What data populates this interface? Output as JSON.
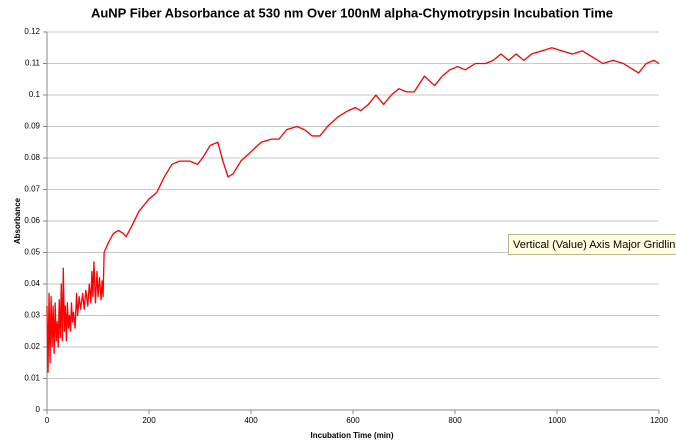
{
  "chart_data": {
    "type": "line",
    "title": "AuNP Fiber Absorbance at 530 nm Over 100nM alpha-Chymotrypsin Incubation Time",
    "x_label": "Incubation Time (min)",
    "y_label": "Absorbance",
    "xlim": [
      0,
      1200
    ],
    "xticks": [
      0,
      200,
      400,
      600,
      800,
      1000,
      1200
    ],
    "ylim": [
      0,
      0.12
    ],
    "yticks": [
      0,
      0.01,
      0.02,
      0.03,
      0.04,
      0.05,
      0.06,
      0.07,
      0.08,
      0.09,
      0.1,
      0.11,
      0.12
    ],
    "grid": true,
    "series": [
      {
        "color": "#ff0000",
        "x": [
          0,
          2,
          4,
          6,
          8,
          10,
          12,
          14,
          16,
          18,
          20,
          22,
          24,
          26,
          28,
          30,
          32,
          34,
          36,
          38,
          40,
          42,
          44,
          46,
          48,
          50,
          52,
          55,
          58,
          60,
          63,
          66,
          70,
          73,
          76,
          80,
          83,
          86,
          88,
          90,
          92,
          95,
          98,
          100,
          103,
          106,
          108,
          110,
          112,
          120,
          130,
          140,
          150,
          155,
          165,
          180,
          200,
          215,
          230,
          245,
          260,
          280,
          295,
          305,
          320,
          335,
          345,
          355,
          365,
          380,
          400,
          420,
          440,
          455,
          470,
          490,
          505,
          520,
          535,
          550,
          570,
          590,
          605,
          615,
          630,
          645,
          660,
          675,
          690,
          705,
          720,
          740,
          760,
          775,
          790,
          805,
          820,
          840,
          860,
          875,
          890,
          905,
          920,
          935,
          950,
          970,
          990,
          1010,
          1030,
          1050,
          1070,
          1090,
          1110,
          1130,
          1150,
          1160,
          1175,
          1190,
          1200
        ],
        "values": [
          0.033,
          0.012,
          0.037,
          0.015,
          0.036,
          0.02,
          0.033,
          0.018,
          0.034,
          0.022,
          0.028,
          0.02,
          0.035,
          0.023,
          0.04,
          0.022,
          0.045,
          0.025,
          0.033,
          0.022,
          0.034,
          0.026,
          0.03,
          0.025,
          0.034,
          0.028,
          0.031,
          0.026,
          0.037,
          0.03,
          0.036,
          0.032,
          0.037,
          0.032,
          0.038,
          0.033,
          0.04,
          0.034,
          0.044,
          0.036,
          0.047,
          0.034,
          0.044,
          0.036,
          0.042,
          0.035,
          0.041,
          0.036,
          0.05,
          0.053,
          0.056,
          0.057,
          0.056,
          0.055,
          0.058,
          0.063,
          0.067,
          0.069,
          0.074,
          0.078,
          0.079,
          0.079,
          0.078,
          0.08,
          0.084,
          0.085,
          0.079,
          0.074,
          0.075,
          0.079,
          0.082,
          0.085,
          0.086,
          0.086,
          0.089,
          0.09,
          0.089,
          0.087,
          0.087,
          0.09,
          0.093,
          0.095,
          0.096,
          0.095,
          0.097,
          0.1,
          0.097,
          0.1,
          0.102,
          0.101,
          0.101,
          0.106,
          0.103,
          0.106,
          0.108,
          0.109,
          0.108,
          0.11,
          0.11,
          0.111,
          0.113,
          0.111,
          0.113,
          0.111,
          0.113,
          0.114,
          0.115,
          0.114,
          0.113,
          0.114,
          0.112,
          0.11,
          0.111,
          0.11,
          0.108,
          0.107,
          0.11,
          0.111,
          0.11
        ]
      }
    ]
  },
  "tooltip": "Vertical (Value) Axis Major Gridlin"
}
